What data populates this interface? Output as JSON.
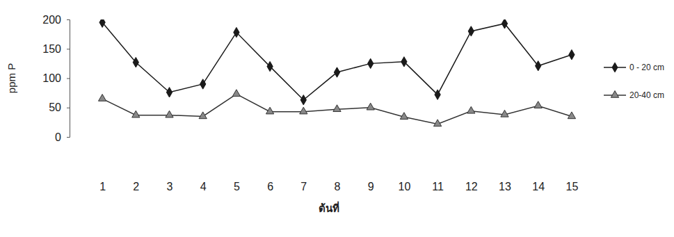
{
  "chart_data": {
    "type": "line",
    "x_label": "ต้นที่",
    "y_label": "ppm P",
    "categories": [
      "1",
      "2",
      "3",
      "4",
      "5",
      "6",
      "7",
      "8",
      "9",
      "10",
      "11",
      "12",
      "13",
      "14",
      "15"
    ],
    "series": [
      {
        "name": "0 - 20 cm",
        "color": "#1a1a1a",
        "marker": "diamond",
        "values": [
          195,
          127,
          76,
          90,
          178,
          120,
          63,
          110,
          125,
          128,
          72,
          180,
          193,
          121,
          140
        ]
      },
      {
        "name": "20-40 cm",
        "color": "#333333",
        "marker": "triangle",
        "values": [
          65,
          37,
          37,
          35,
          73,
          43,
          43,
          47,
          50,
          34,
          22,
          44,
          38,
          53,
          35
        ]
      }
    ],
    "ylim": [
      0,
      200
    ],
    "yticks": [
      0,
      50,
      100,
      150,
      200
    ],
    "grid": false,
    "legend": "right"
  }
}
